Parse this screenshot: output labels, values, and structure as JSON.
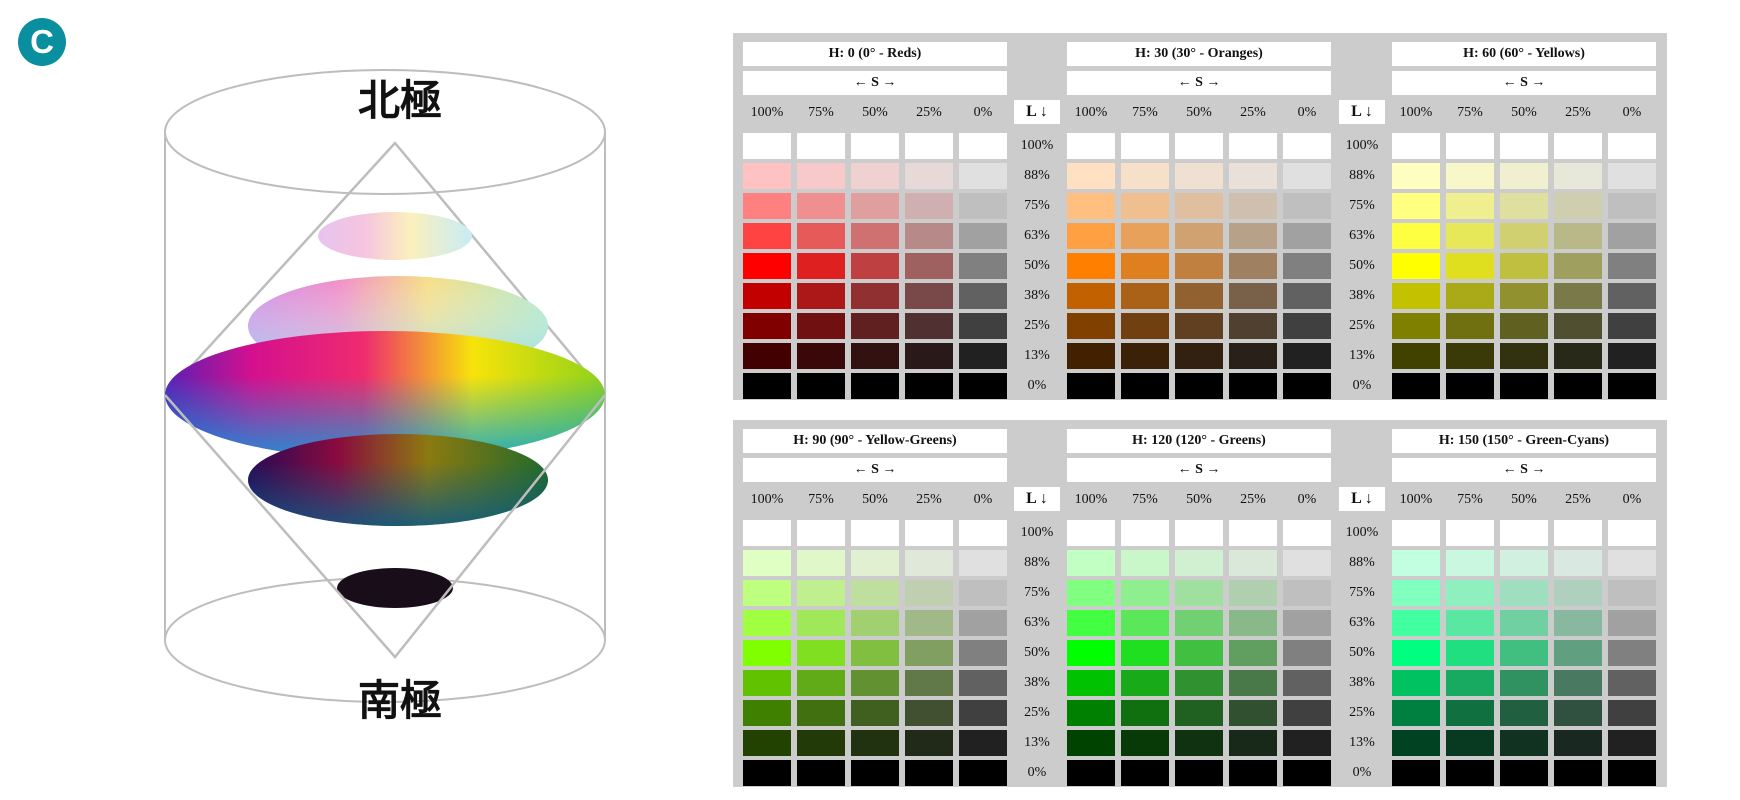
{
  "badge": {
    "label": "C"
  },
  "poles": {
    "north": "北極",
    "south": "南極"
  },
  "headers": {
    "s_axis": "← S →",
    "l_axis": "L ↓"
  },
  "saturation_labels": [
    "100%",
    "75%",
    "50%",
    "25%",
    "0%"
  ],
  "lightness_labels": [
    "100%",
    "88%",
    "75%",
    "63%",
    "50%",
    "38%",
    "25%",
    "13%",
    "0%"
  ],
  "saturation_values": [
    100,
    75,
    50,
    25,
    0
  ],
  "lightness_values": [
    100,
    88,
    75,
    63,
    50,
    38,
    25,
    13,
    0
  ],
  "panels": [
    {
      "hues": [
        {
          "title": "H: 0 (0° - Reds)",
          "h": 0
        },
        {
          "title": "H: 30 (30° - Oranges)",
          "h": 30
        },
        {
          "title": "H: 60 (60° - Yellows)",
          "h": 60
        }
      ]
    },
    {
      "hues": [
        {
          "title": "H: 90 (90° - Yellow-Greens)",
          "h": 90
        },
        {
          "title": "H: 120 (120° - Greens)",
          "h": 120
        },
        {
          "title": "H: 150 (150° - Green-Cyans)",
          "h": 150
        }
      ]
    }
  ]
}
